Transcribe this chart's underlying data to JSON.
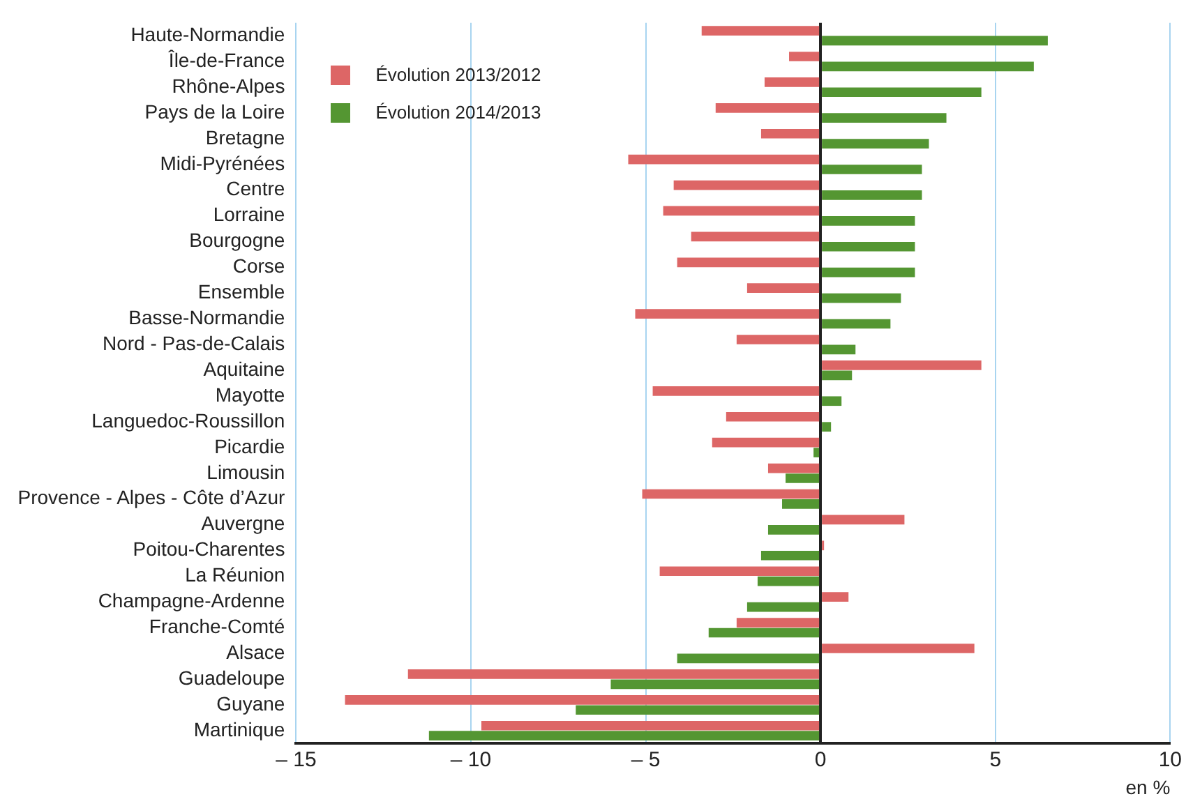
{
  "chart_data": {
    "type": "bar",
    "orientation": "horizontal",
    "categories": [
      "Haute-Normandie",
      "Île-de-France",
      "Rhône-Alpes",
      "Pays de la Loire",
      "Bretagne",
      "Midi-Pyrénées",
      "Centre",
      "Lorraine",
      "Bourgogne",
      "Corse",
      "Ensemble",
      "Basse-Normandie",
      "Nord - Pas-de-Calais",
      "Aquitaine",
      "Mayotte",
      "Languedoc-Roussillon",
      "Picardie",
      "Limousin",
      "Provence - Alpes - Côte d’Azur",
      "Auvergne",
      "Poitou-Charentes",
      "La Réunion",
      "Champagne-Ardenne",
      "Franche-Comté",
      "Alsace",
      "Guadeloupe",
      "Guyane",
      "Martinique"
    ],
    "series": [
      {
        "name": "Évolution 2013/2012",
        "color": "#dd6666",
        "values": [
          -3.4,
          -0.9,
          -1.6,
          -3.0,
          -1.7,
          -5.5,
          -4.2,
          -4.5,
          -3.7,
          -4.1,
          -2.1,
          -5.3,
          -2.4,
          4.6,
          -4.8,
          -2.7,
          -3.1,
          -1.5,
          -5.1,
          2.4,
          0.1,
          -4.6,
          0.8,
          -2.4,
          4.4,
          -11.8,
          -13.6,
          -9.7
        ]
      },
      {
        "name": "Évolution 2014/2013",
        "color": "#549632",
        "values": [
          6.5,
          6.1,
          4.6,
          3.6,
          3.1,
          2.9,
          2.9,
          2.7,
          2.7,
          2.7,
          2.3,
          2.0,
          1.0,
          0.9,
          0.6,
          0.3,
          -0.2,
          -1.0,
          -1.1,
          -1.5,
          -1.7,
          -1.8,
          -2.1,
          -3.2,
          -4.1,
          -6.0,
          -7.0,
          -11.2
        ]
      }
    ],
    "xlim": [
      -15,
      10
    ],
    "xticks": [
      {
        "value": -15,
        "label": "– 15"
      },
      {
        "value": -10,
        "label": "– 10"
      },
      {
        "value": -5,
        "label": "– 5"
      },
      0,
      5,
      10
    ],
    "xlabel": "en %",
    "grid": "x",
    "legend": "top left"
  }
}
